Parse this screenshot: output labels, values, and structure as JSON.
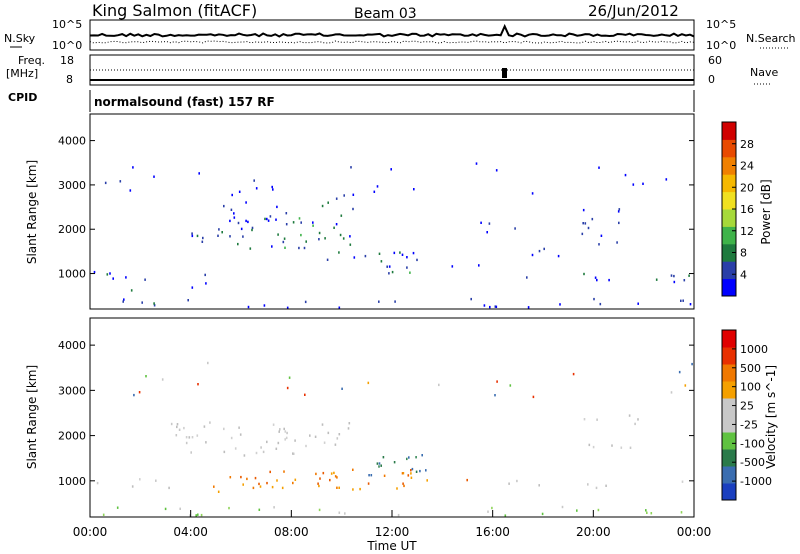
{
  "header": {
    "station": "King Salmon (fitACF)",
    "beam": "Beam 03",
    "date": "26/Jun/2012"
  },
  "top_panels": {
    "nsky_label": "N.Sky",
    "nsearch_label": "N.Search",
    "noise_ticks_left": [
      "10^5",
      "10^0"
    ],
    "noise_ticks_right": [
      "10^5",
      "10^0"
    ],
    "freq_label": "Freq.",
    "freq_unit": "[MHz]",
    "freq_ticks": [
      "18",
      "8"
    ],
    "nave_label": "Nave",
    "nave_ticks": [
      "60",
      "0"
    ],
    "cpid_label": "CPID",
    "cpid_text": "normalsound (fast) 157 RF"
  },
  "chart_data": [
    {
      "type": "heatmap",
      "name": "power",
      "ylabel": "Slant Range [km]",
      "xlabel": "",
      "xlim": [
        0,
        24
      ],
      "ylim": [
        200,
        4600
      ],
      "yticks": [
        1000,
        2000,
        3000,
        4000
      ],
      "colorbar": {
        "label": "Power [dB]",
        "ticks": [
          "4",
          "8",
          "12",
          "16",
          "20",
          "24",
          "28"
        ],
        "colors": [
          "#0000ff",
          "#2a3fa8",
          "#1e7a3e",
          "#3fb34a",
          "#a6d93a",
          "#f0e020",
          "#f5b800",
          "#f08000",
          "#e84a00",
          "#d00000"
        ]
      },
      "regions": [
        {
          "t0": 0.0,
          "t1": 24.0,
          "r0": 220,
          "r1": 420,
          "level": 0.15
        },
        {
          "t0": 0.0,
          "t1": 3.3,
          "r0": 800,
          "r1": 1050,
          "level": 0.2
        },
        {
          "t0": 1.0,
          "t1": 2.2,
          "r0": 500,
          "r1": 620,
          "level": 0.2
        },
        {
          "t0": 3.9,
          "t1": 4.6,
          "r0": 650,
          "r1": 1050,
          "level": 0.3
        },
        {
          "t0": 3.2,
          "t1": 5.5,
          "r0": 1700,
          "r1": 2000,
          "level": 0.3
        },
        {
          "t0": 5.5,
          "t1": 10.5,
          "r0": 1550,
          "r1": 2300,
          "level": 0.3
        },
        {
          "t0": 4.5,
          "t1": 8.5,
          "r0": 2200,
          "r1": 3100,
          "level": 0.08
        },
        {
          "t0": 8.5,
          "t1": 10.5,
          "r0": 2400,
          "r1": 2800,
          "level": 0.2
        },
        {
          "t0": 9.0,
          "t1": 11.0,
          "r0": 1200,
          "r1": 1500,
          "level": 0.2
        },
        {
          "t0": 11.0,
          "t1": 13.0,
          "r0": 950,
          "r1": 1500,
          "level": 0.35
        },
        {
          "t0": 13.0,
          "t1": 15.5,
          "r0": 1000,
          "r1": 1200,
          "level": 0.1
        },
        {
          "t0": 15.2,
          "t1": 17.5,
          "r0": 1900,
          "r1": 2200,
          "level": 0.15
        },
        {
          "t0": 16.5,
          "t1": 24.0,
          "r0": 800,
          "r1": 1000,
          "level": 0.2
        },
        {
          "t0": 17.5,
          "t1": 19.5,
          "r0": 1300,
          "r1": 1800,
          "level": 0.1
        },
        {
          "t0": 19.5,
          "t1": 22.0,
          "r0": 1600,
          "r1": 2500,
          "level": 0.15
        },
        {
          "t0": 0.0,
          "t1": 24.0,
          "r0": 2800,
          "r1": 3600,
          "level": 0.03
        }
      ]
    },
    {
      "type": "heatmap",
      "name": "velocity",
      "ylabel": "Slant Range [km]",
      "xlabel": "Time UT",
      "xlim": [
        0,
        24
      ],
      "ylim": [
        200,
        4600
      ],
      "yticks": [
        1000,
        2000,
        3000,
        4000
      ],
      "xticks": [
        "00:00",
        "04:00",
        "08:00",
        "12:00",
        "16:00",
        "20:00",
        "00:00"
      ],
      "colorbar": {
        "label": "Velocity [m s^-1]",
        "ticks": [
          "1000",
          "500",
          "100",
          "25",
          "-25",
          "-100",
          "-500",
          "-1000"
        ],
        "colors": [
          "#1a3fbf",
          "#3a6db0",
          "#2a7a4a",
          "#5fc240",
          "#c8c8c8",
          "#c8c8c8",
          "#f5a000",
          "#f07800",
          "#e83000",
          "#e00000"
        ]
      },
      "regions": [
        {
          "t0": 0.0,
          "t1": 24.0,
          "r0": 220,
          "r1": 420,
          "level": 0.15,
          "vel": "green"
        },
        {
          "t0": 0.0,
          "t1": 3.3,
          "r0": 800,
          "r1": 1050,
          "level": 0.15,
          "vel": "grey"
        },
        {
          "t0": 3.2,
          "t1": 10.5,
          "r0": 1550,
          "r1": 2300,
          "level": 0.25,
          "vel": "grey"
        },
        {
          "t0": 4.8,
          "t1": 6.0,
          "r0": 650,
          "r1": 1100,
          "level": 0.2,
          "vel": "orange"
        },
        {
          "t0": 6.0,
          "t1": 13.0,
          "r0": 800,
          "r1": 1250,
          "level": 0.35,
          "vel": "orange"
        },
        {
          "t0": 11.0,
          "t1": 13.5,
          "r0": 1100,
          "r1": 1600,
          "level": 0.35,
          "vel": "teal"
        },
        {
          "t0": 13.0,
          "t1": 15.5,
          "r0": 1000,
          "r1": 1200,
          "level": 0.1,
          "vel": "orange"
        },
        {
          "t0": 16.5,
          "t1": 24.0,
          "r0": 800,
          "r1": 1000,
          "level": 0.12,
          "vel": "grey"
        },
        {
          "t0": 19.5,
          "t1": 22.0,
          "r0": 1600,
          "r1": 2500,
          "level": 0.12,
          "vel": "grey"
        },
        {
          "t0": 0.0,
          "t1": 24.0,
          "r0": 2800,
          "r1": 3600,
          "level": 0.03,
          "vel": "mixed"
        }
      ]
    }
  ]
}
